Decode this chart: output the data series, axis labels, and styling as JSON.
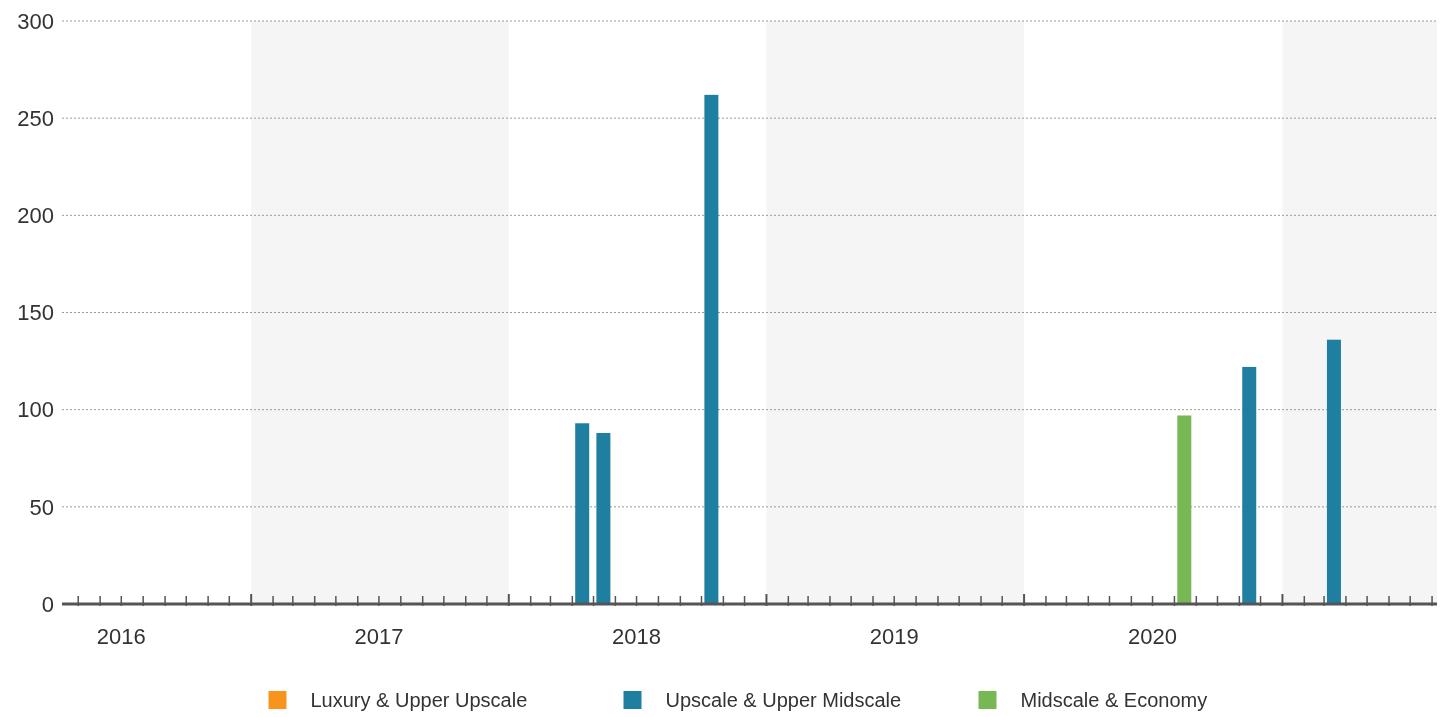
{
  "chart_data": {
    "type": "bar",
    "xlim": [
      "2016-04-08",
      "2021-08-08"
    ],
    "xticks": [
      {
        "value": "2016-05-01",
        "label": null
      },
      {
        "value": "2016-06-01",
        "label": null
      },
      {
        "value": "2016-07-01",
        "label": "2016"
      },
      {
        "value": "2016-08-01",
        "label": null
      },
      {
        "value": "2016-09-01",
        "label": null
      },
      {
        "value": "2016-10-01",
        "label": null
      },
      {
        "value": "2016-11-01",
        "label": null
      },
      {
        "value": "2016-12-01",
        "label": null
      },
      {
        "value": "2017-01-01",
        "label": null
      },
      {
        "value": "2017-02-01",
        "label": null
      },
      {
        "value": "2017-03-01",
        "label": null
      },
      {
        "value": "2017-04-01",
        "label": null
      },
      {
        "value": "2017-05-01",
        "label": null
      },
      {
        "value": "2017-06-01",
        "label": null
      },
      {
        "value": "2017-07-01",
        "label": "2017"
      },
      {
        "value": "2017-08-01",
        "label": null
      },
      {
        "value": "2017-09-01",
        "label": null
      },
      {
        "value": "2017-10-01",
        "label": null
      },
      {
        "value": "2017-11-01",
        "label": null
      },
      {
        "value": "2017-12-01",
        "label": null
      },
      {
        "value": "2018-01-01",
        "label": null
      },
      {
        "value": "2018-02-01",
        "label": null
      },
      {
        "value": "2018-03-01",
        "label": null
      },
      {
        "value": "2018-04-01",
        "label": null
      },
      {
        "value": "2018-05-01",
        "label": null
      },
      {
        "value": "2018-06-01",
        "label": null
      },
      {
        "value": "2018-07-01",
        "label": "2018"
      },
      {
        "value": "2018-08-01",
        "label": null
      },
      {
        "value": "2018-09-01",
        "label": null
      },
      {
        "value": "2018-10-01",
        "label": null
      },
      {
        "value": "2018-11-01",
        "label": null
      },
      {
        "value": "2018-12-01",
        "label": null
      },
      {
        "value": "2019-01-01",
        "label": null
      },
      {
        "value": "2019-02-01",
        "label": null
      },
      {
        "value": "2019-03-01",
        "label": null
      },
      {
        "value": "2019-04-01",
        "label": null
      },
      {
        "value": "2019-05-01",
        "label": null
      },
      {
        "value": "2019-06-01",
        "label": null
      },
      {
        "value": "2019-07-01",
        "label": "2019"
      },
      {
        "value": "2019-08-01",
        "label": null
      },
      {
        "value": "2019-09-01",
        "label": null
      },
      {
        "value": "2019-10-01",
        "label": null
      },
      {
        "value": "2019-11-01",
        "label": null
      },
      {
        "value": "2019-12-01",
        "label": null
      },
      {
        "value": "2020-01-01",
        "label": null
      },
      {
        "value": "2020-02-01",
        "label": null
      },
      {
        "value": "2020-03-01",
        "label": null
      },
      {
        "value": "2020-04-01",
        "label": null
      },
      {
        "value": "2020-05-01",
        "label": null
      },
      {
        "value": "2020-06-01",
        "label": null
      },
      {
        "value": "2020-07-01",
        "label": "2020"
      },
      {
        "value": "2020-08-01",
        "label": null
      },
      {
        "value": "2020-09-01",
        "label": null
      },
      {
        "value": "2020-10-01",
        "label": null
      },
      {
        "value": "2020-11-01",
        "label": null
      },
      {
        "value": "2020-12-01",
        "label": null
      },
      {
        "value": "2021-01-01",
        "label": null
      },
      {
        "value": "2021-02-01",
        "label": null
      },
      {
        "value": "2021-03-01",
        "label": null
      },
      {
        "value": "2021-04-01",
        "label": null
      },
      {
        "value": "2021-05-01",
        "label": null
      },
      {
        "value": "2021-06-01",
        "label": null
      },
      {
        "value": "2021-07-01",
        "label": null
      },
      {
        "value": "2021-08-01",
        "label": null
      }
    ],
    "ylim": [
      0,
      300
    ],
    "yticks": [
      0,
      50,
      100,
      150,
      200,
      250,
      300
    ],
    "grid": "y",
    "legend": "bottom",
    "bands": [
      {
        "axis": "x",
        "from": "2017-01-01",
        "to": "2018-01-01",
        "color": "#f5f5f5"
      },
      {
        "axis": "x",
        "from": "2019-01-01",
        "to": "2020-01-01",
        "color": "#f5f5f5"
      },
      {
        "axis": "x",
        "from": "2021-01-01",
        "to": "2021-08-08",
        "color": "#f5f5f5"
      }
    ],
    "series": [
      {
        "name": "Luxury & Upper Upscale",
        "color": "#f7941d"
      },
      {
        "name": "Upscale & Upper Midscale",
        "color": "#1f7fa0",
        "x": [
          "2018-04-15",
          "2018-05-15",
          "2018-10-15",
          "2020-11-15",
          "2021-03-15"
        ],
        "values": [
          93,
          88,
          262,
          122,
          136
        ]
      },
      {
        "name": "Midscale & Economy",
        "color": "#78b854",
        "x": [
          "2020-08-15"
        ],
        "values": [
          97
        ]
      }
    ]
  }
}
